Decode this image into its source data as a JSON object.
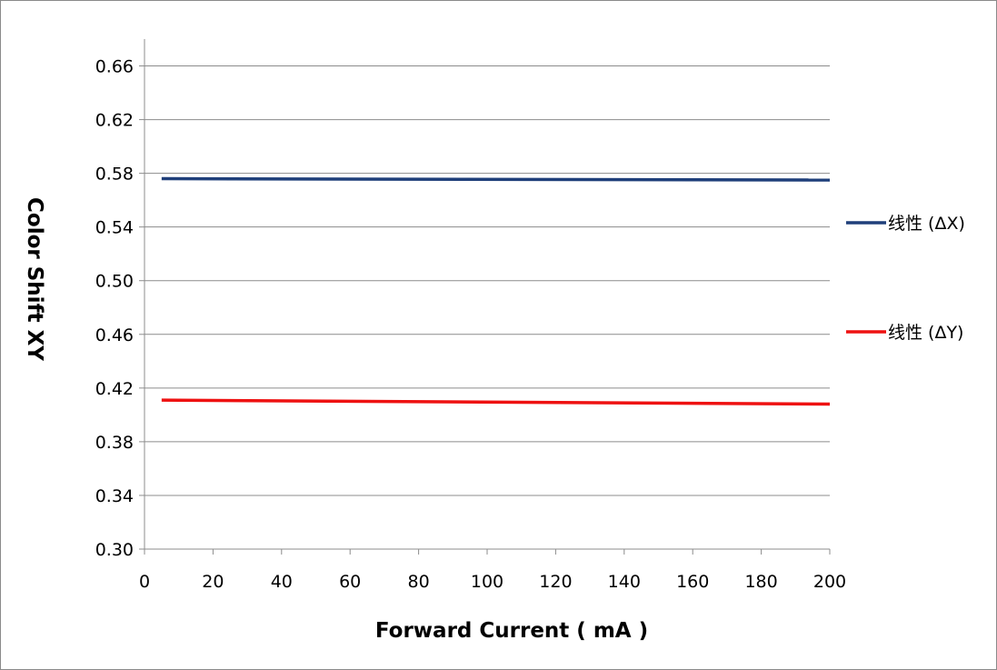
{
  "chart_data": {
    "type": "line",
    "xlabel": "Forward  Current ( mA )",
    "ylabel": "Color  Shift   XY",
    "xlim": [
      0,
      200
    ],
    "ylim": [
      0.3,
      0.68
    ],
    "x_ticks": [
      "0",
      "20",
      "40",
      "60",
      "80",
      "100",
      "120",
      "140",
      "160",
      "180",
      "200"
    ],
    "y_ticks": [
      "0.30",
      "0.34",
      "0.38",
      "0.42",
      "0.46",
      "0.50",
      "0.54",
      "0.58",
      "0.62",
      "0.66"
    ],
    "grid": true,
    "legend_position": "right",
    "series": [
      {
        "name": "线性 (ΔX)",
        "color": "#1f3f7a",
        "x": [
          5,
          200
        ],
        "y": [
          0.576,
          0.575
        ]
      },
      {
        "name": "线性 (ΔY)",
        "color": "#ee1111",
        "x": [
          5,
          200
        ],
        "y": [
          0.411,
          0.408
        ]
      }
    ]
  }
}
